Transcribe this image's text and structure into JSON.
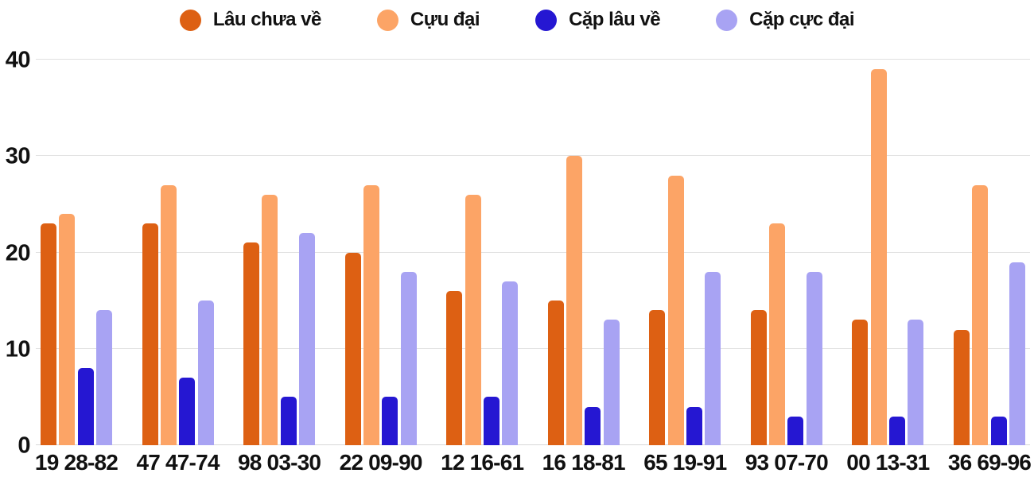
{
  "chart_data": {
    "type": "bar",
    "title": "",
    "xlabel": "",
    "ylabel": "",
    "ylim": [
      0,
      40
    ],
    "yticks": [
      0,
      10,
      20,
      30,
      40
    ],
    "grid": true,
    "legend_position": "top",
    "gridline_color": "#e0e0e0",
    "text_color": "#111111",
    "categories": [
      "19 28-82",
      "47 47-74",
      "98 03-30",
      "22 09-90",
      "12 16-61",
      "16 18-81",
      "65 19-91",
      "93 07-70",
      "00 13-31",
      "36 69-96"
    ],
    "series": [
      {
        "name": "Lâu chưa về",
        "color": "#dd6013",
        "values": [
          23,
          23,
          21,
          20,
          16,
          15,
          14,
          14,
          13,
          12
        ]
      },
      {
        "name": "Cựu đại",
        "color": "#fca466",
        "values": [
          24,
          27,
          26,
          27,
          26,
          30,
          28,
          23,
          39,
          27
        ]
      },
      {
        "name": "Cặp lâu về",
        "color": "#2517d2",
        "values": [
          8,
          7,
          5,
          5,
          5,
          4,
          4,
          3,
          3,
          3
        ]
      },
      {
        "name": "Cặp cực đại",
        "color": "#a8a3f3",
        "values": [
          14,
          15,
          22,
          18,
          17,
          13,
          18,
          18,
          13,
          19
        ]
      }
    ]
  }
}
